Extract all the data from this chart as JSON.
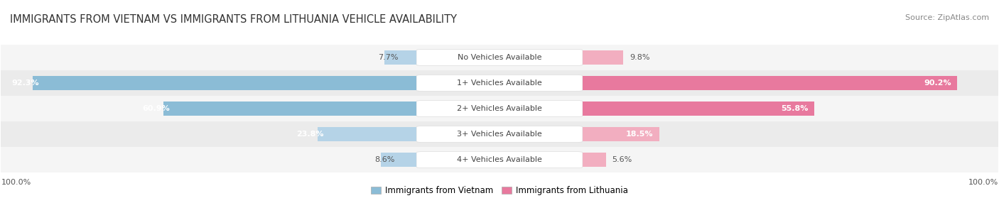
{
  "title": "IMMIGRANTS FROM VIETNAM VS IMMIGRANTS FROM LITHUANIA VEHICLE AVAILABILITY",
  "source": "Source: ZipAtlas.com",
  "categories": [
    "No Vehicles Available",
    "1+ Vehicles Available",
    "2+ Vehicles Available",
    "3+ Vehicles Available",
    "4+ Vehicles Available"
  ],
  "vietnam_values": [
    7.7,
    92.3,
    60.9,
    23.8,
    8.6
  ],
  "lithuania_values": [
    9.8,
    90.2,
    55.8,
    18.5,
    5.6
  ],
  "vietnam_color": "#8bbcd6",
  "lithuania_color": "#e8799e",
  "vietnam_color_light": "#b5d3e7",
  "lithuania_color_light": "#f2aec0",
  "row_bg_odd": "#f5f5f5",
  "row_bg_even": "#ebebeb",
  "title_fontsize": 10.5,
  "label_fontsize": 8,
  "value_fontsize": 8,
  "legend_fontsize": 8.5,
  "source_fontsize": 8,
  "max_value": 100.0,
  "background_color": "#ffffff",
  "center_label_color": "#444444",
  "value_label_inside_color": "#ffffff",
  "value_label_outside_color": "#555555"
}
